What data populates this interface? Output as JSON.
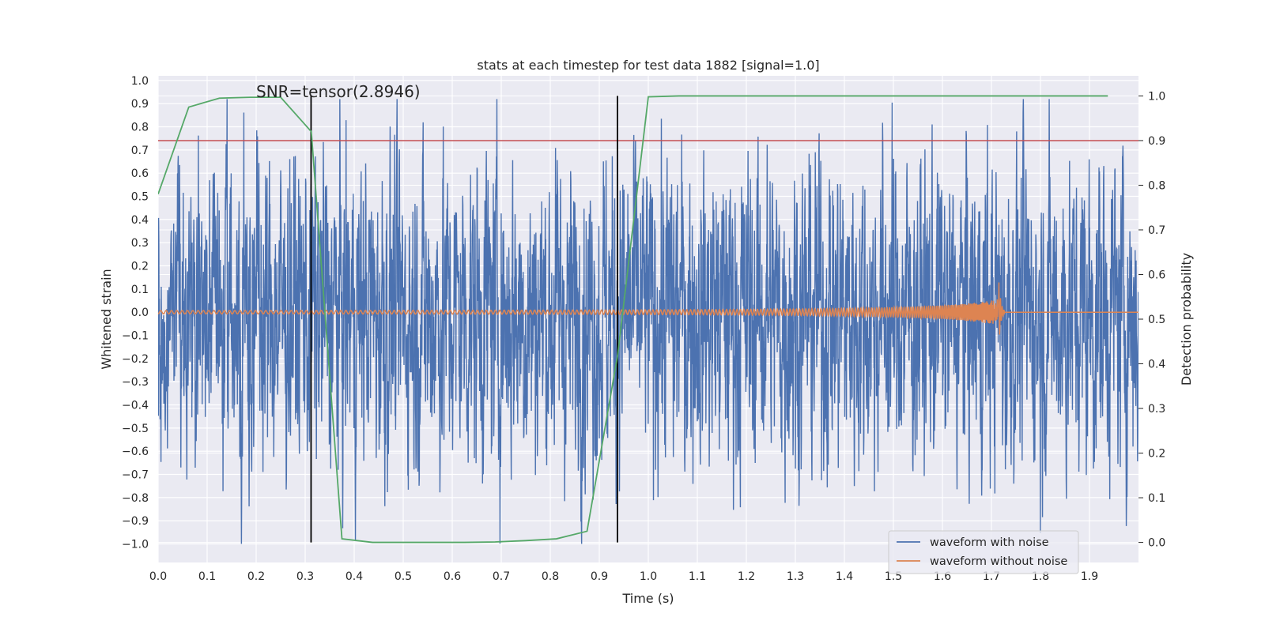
{
  "chart_data": {
    "type": "line",
    "title": "stats at each timestep for test data 1882 [signal=1.0]",
    "xlabel": "Time (s)",
    "ylabel": "Whitened strain",
    "y2label": "Detection probability",
    "xlim": [
      0.0,
      2.0
    ],
    "ylim": [
      -1.08,
      1.02
    ],
    "y2lim": [
      -0.045,
      1.045
    ],
    "x_ticks": [
      "0.0",
      "0.1",
      "0.2",
      "0.3",
      "0.4",
      "0.5",
      "0.6",
      "0.7",
      "0.8",
      "0.9",
      "1.0",
      "1.1",
      "1.2",
      "1.3",
      "1.4",
      "1.5",
      "1.6",
      "1.7",
      "1.8",
      "1.9"
    ],
    "y_ticks": [
      "1.0",
      "0.9",
      "0.8",
      "0.7",
      "0.6",
      "0.5",
      "0.4",
      "0.3",
      "0.2",
      "0.1",
      "0.0",
      "−0.1",
      "−0.2",
      "−0.3",
      "−0.4",
      "−0.5",
      "−0.6",
      "−0.7",
      "−0.8",
      "−0.9",
      "−1.0"
    ],
    "y2_ticks": [
      "1.0",
      "0.9",
      "0.8",
      "0.7",
      "0.6",
      "0.5",
      "0.4",
      "0.3",
      "0.2",
      "0.1",
      "0.0"
    ],
    "annotation": "SNR=tensor(2.8946)",
    "threshold": {
      "value": 0.9,
      "axis": "right",
      "color": "#c44e52"
    },
    "vertical_markers": [
      0.312,
      0.937
    ],
    "series": [
      {
        "name": "waveform with noise",
        "axis": "left",
        "color": "#4c72b0",
        "generated": true,
        "x_range": [
          0.0,
          2.0
        ],
        "amplitude_std": 0.33,
        "y_range": [
          -1.0,
          0.92
        ]
      },
      {
        "name": "waveform without noise",
        "axis": "left",
        "color": "#dd8452",
        "description_points": {
          "start": 0.0,
          "merger": 1.715,
          "end": 2.0,
          "peak_amplitude": 0.15
        }
      },
      {
        "name": "detection probability",
        "axis": "right",
        "color": "#55a868",
        "x": [
          0.0,
          0.0625,
          0.125,
          0.1875,
          0.25,
          0.3125,
          0.375,
          0.4375,
          0.5,
          0.5625,
          0.625,
          0.6875,
          0.75,
          0.8125,
          0.875,
          0.9375,
          1.0,
          1.0625,
          1.125,
          1.1875,
          1.25,
          1.3125,
          1.375,
          1.4375,
          1.5,
          1.5625,
          1.625,
          1.6875,
          1.75,
          1.8125,
          1.875,
          1.9375
        ],
        "values": [
          0.78,
          0.975,
          0.995,
          0.997,
          0.997,
          0.92,
          0.008,
          0.0,
          0.0,
          0.0,
          0.0,
          0.001,
          0.004,
          0.008,
          0.025,
          0.42,
          0.998,
          1.0,
          1.0,
          1.0,
          1.0,
          1.0,
          1.0,
          1.0,
          1.0,
          1.0,
          1.0,
          1.0,
          1.0,
          1.0,
          1.0,
          1.0
        ]
      }
    ],
    "legend": {
      "position": "lower-right",
      "entries": [
        "waveform with noise",
        "waveform without noise"
      ]
    },
    "colors": {
      "plot_bg": "#eaeaf2",
      "grid": "#ffffff",
      "noise": "#4c72b0",
      "clean": "#dd8452",
      "prob": "#55a868",
      "threshold": "#c44e52",
      "marker": "#000000"
    }
  }
}
